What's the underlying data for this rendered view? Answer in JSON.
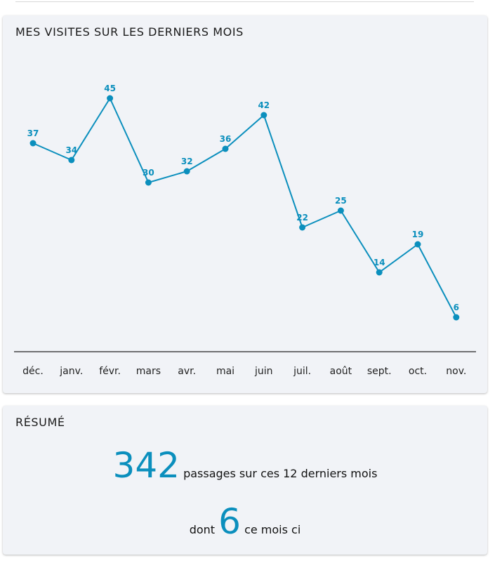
{
  "chart_card": {
    "title": "MES VISITES SUR LES DERNIERS MOIS"
  },
  "chart_data": {
    "type": "line",
    "title": "MES VISITES SUR LES DERNIERS MOIS",
    "categories": [
      "déc.",
      "janv.",
      "févr.",
      "mars",
      "avr.",
      "mai",
      "juin",
      "juil.",
      "août",
      "sept.",
      "oct.",
      "nov."
    ],
    "series": [
      {
        "values": [
          37,
          34,
          45,
          30,
          32,
          36,
          42,
          22,
          25,
          14,
          19,
          6
        ]
      }
    ],
    "grid": false,
    "ylim": [
      0,
      52
    ],
    "color": "#0b8fbd"
  },
  "summary": {
    "title": "RÉSUMÉ",
    "total": "342",
    "total_label": "passages sur ces 12 derniers mois",
    "month_prefix": "dont",
    "month_count": "6",
    "month_label": "ce mois ci"
  }
}
